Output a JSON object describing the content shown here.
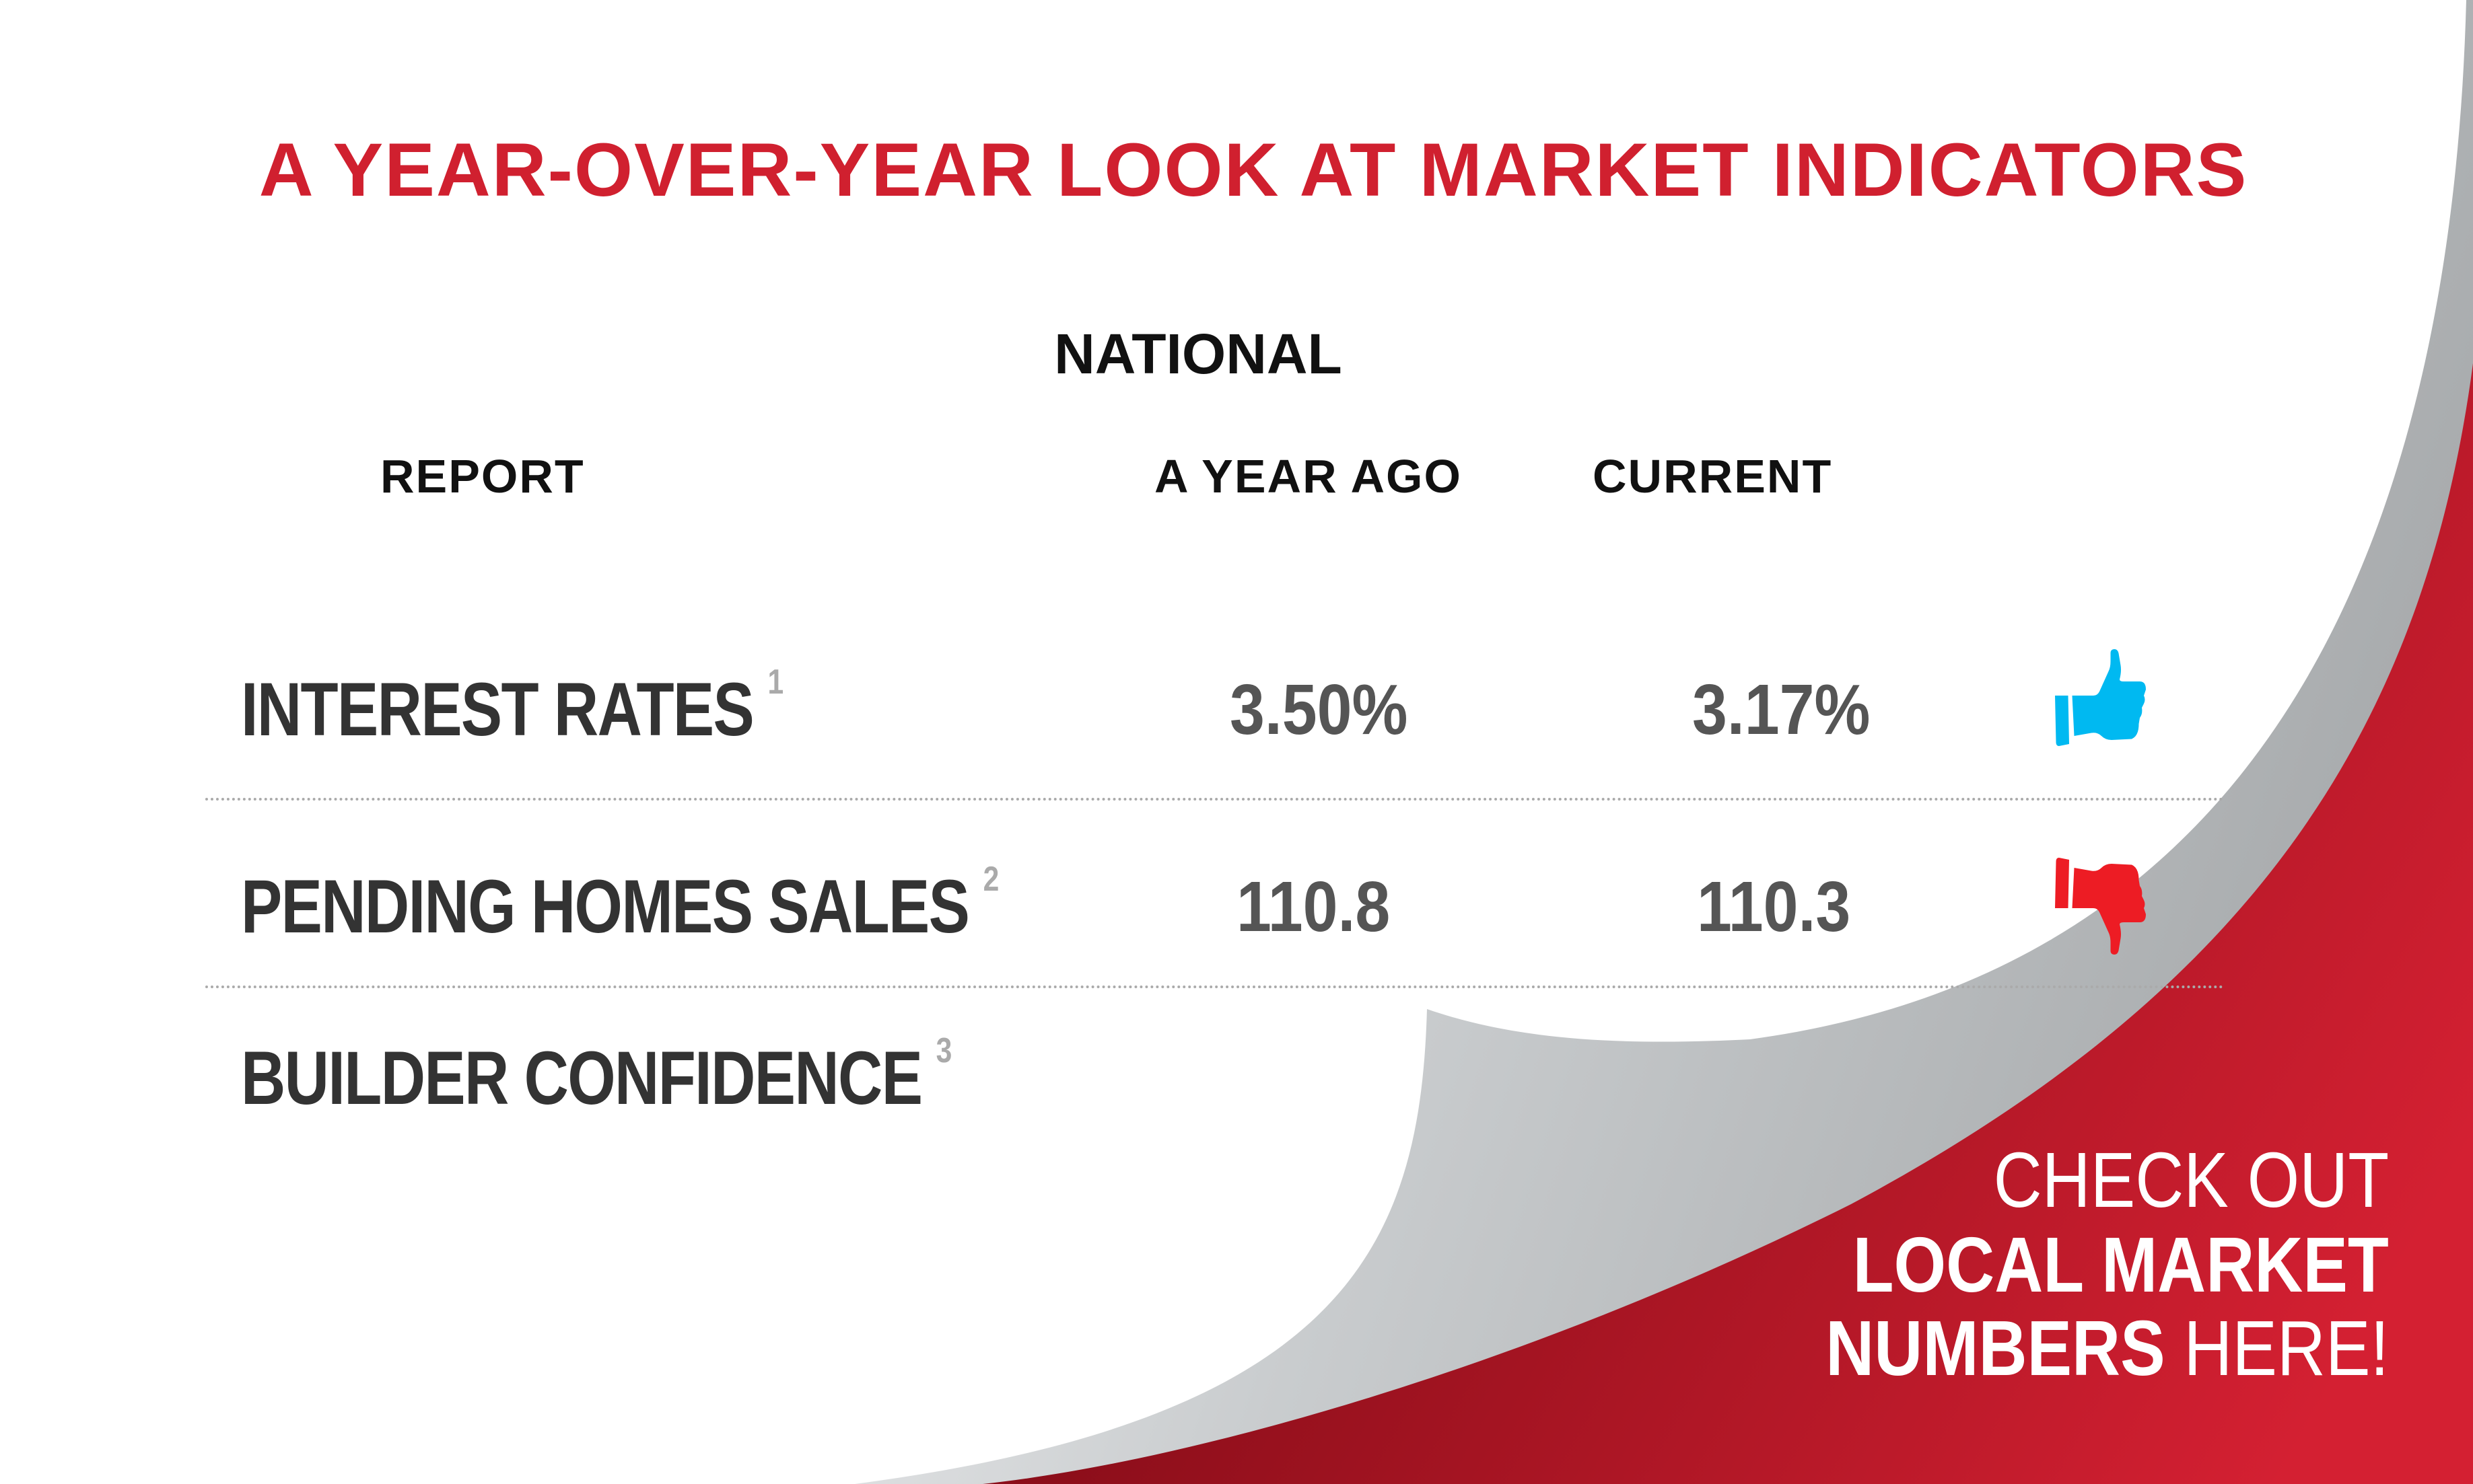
{
  "title": "A YEAR-OVER-YEAR LOOK AT MARKET INDICATORS",
  "section": "NATIONAL",
  "columns": {
    "report": "REPORT",
    "year_ago": "A YEAR AGO",
    "current": "CURRENT"
  },
  "rows": [
    {
      "label": "INTEREST RATES",
      "footnote": "1",
      "year_ago": "3.50%",
      "current": "3.17%",
      "trend_icon": "thumbs-up-icon",
      "trend_color": "#00b9f1"
    },
    {
      "label": "PENDING HOMES SALES",
      "footnote": "2",
      "year_ago": "110.8",
      "current": "110.3",
      "trend_icon": "thumbs-down-icon",
      "trend_color": "#ed1c24"
    },
    {
      "label": "BUILDER CONFIDENCE",
      "footnote": "3"
    }
  ],
  "cta": {
    "line1": "CHECK OUT",
    "line2": "LOCAL MARKET",
    "line3_bold": "NUMBERS",
    "line3_light": "HERE!"
  },
  "colors": {
    "title": "#d0202f",
    "red_dark": "#8c0e1a",
    "red_light": "#d42032"
  }
}
